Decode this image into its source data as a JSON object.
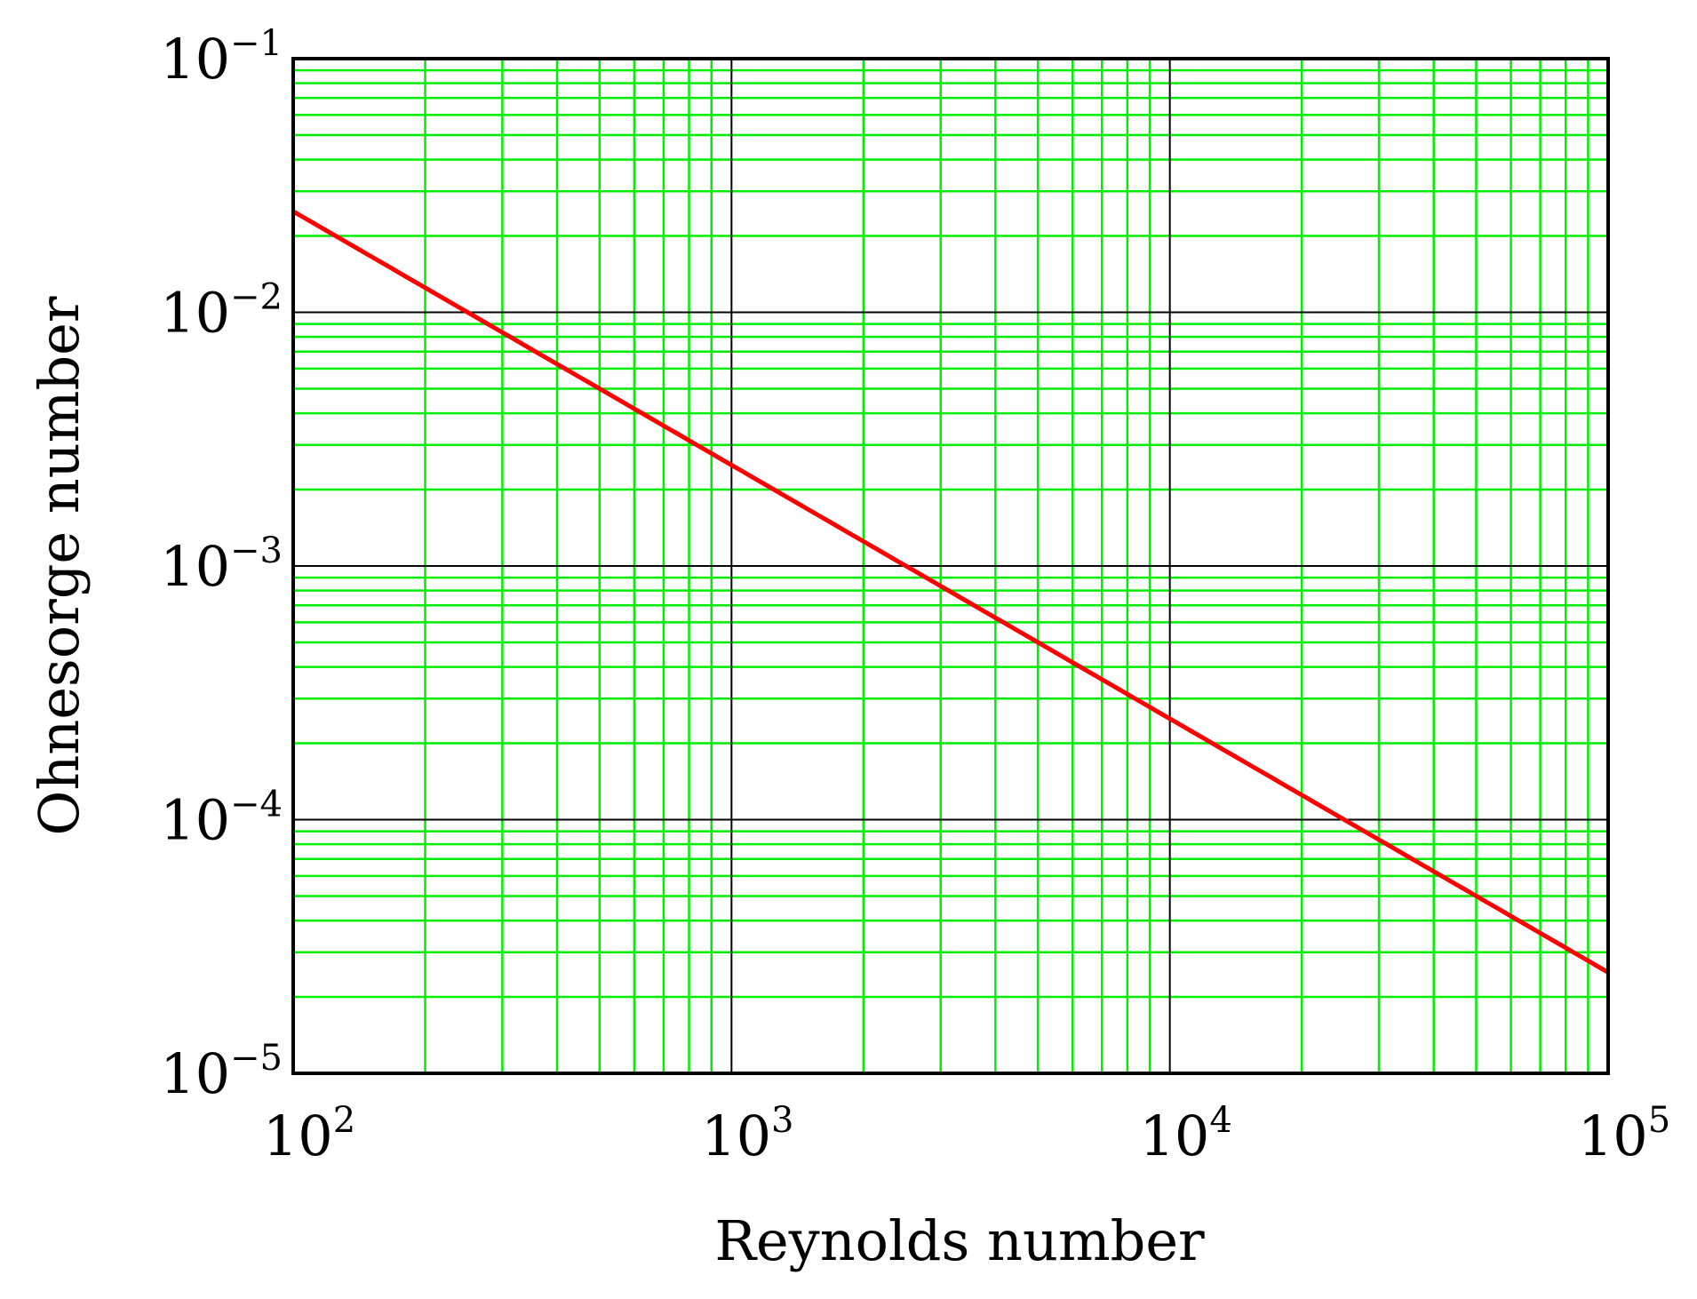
{
  "chart_data": {
    "type": "line",
    "title": "",
    "xlabel": "Reynolds number",
    "ylabel": "Ohnesorge number",
    "xscale": "log",
    "yscale": "log",
    "xlim": [
      100,
      100000
    ],
    "ylim": [
      1e-05,
      0.1
    ],
    "grid": true,
    "grid_colors": {
      "major": "#000000",
      "minor": "#00ee00"
    },
    "x_ticks": [
      {
        "base": "10",
        "exp": "2",
        "value": 100
      },
      {
        "base": "10",
        "exp": "3",
        "value": 1000
      },
      {
        "base": "10",
        "exp": "4",
        "value": 10000
      },
      {
        "base": "10",
        "exp": "5",
        "value": 100000
      }
    ],
    "y_ticks": [
      {
        "base": "10",
        "exp": "−1",
        "value": 0.1
      },
      {
        "base": "10",
        "exp": "−2",
        "value": 0.01
      },
      {
        "base": "10",
        "exp": "−3",
        "value": 0.001
      },
      {
        "base": "10",
        "exp": "−4",
        "value": 0.0001
      },
      {
        "base": "10",
        "exp": "−5",
        "value": 1e-05
      }
    ],
    "series": [
      {
        "color": "#ff0000",
        "x": [
          100,
          1000,
          10000,
          100000
        ],
        "y": [
          0.025,
          0.0025,
          0.00025,
          2.5e-05
        ]
      }
    ]
  }
}
